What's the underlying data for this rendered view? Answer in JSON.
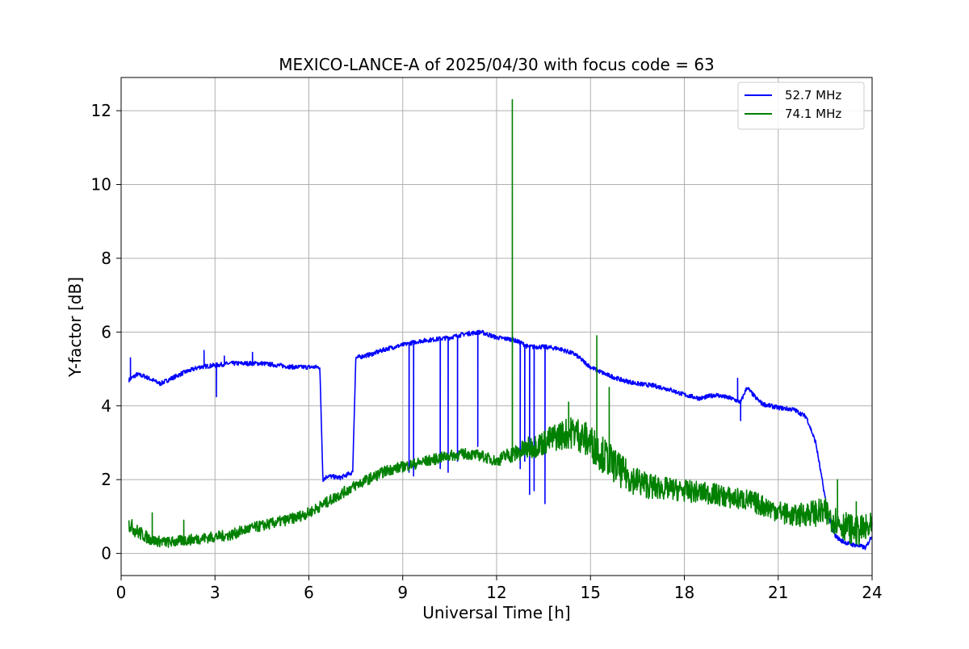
{
  "chart_data": {
    "type": "line",
    "title": "MEXICO-LANCE-A of 2025/04/30 with focus code = 63",
    "xlabel": "Universal Time [h]",
    "ylabel": "Y-factor [dB]",
    "xlim": [
      0,
      24
    ],
    "ylim": [
      -0.6,
      12.9
    ],
    "xticks": [
      0,
      3,
      6,
      9,
      12,
      15,
      18,
      21,
      24
    ],
    "yticks": [
      0,
      2,
      4,
      6,
      8,
      10,
      12
    ],
    "grid": true,
    "legend_position": "top-right",
    "series": [
      {
        "name": "52.7 MHz",
        "color": "#0000ff",
        "x": [
          0.25,
          0.5,
          0.75,
          1.0,
          1.25,
          1.5,
          2.0,
          2.5,
          3.0,
          3.5,
          4.0,
          4.5,
          5.0,
          5.5,
          6.0,
          6.35,
          6.45,
          6.6,
          7.0,
          7.4,
          7.5,
          8.0,
          8.5,
          9.0,
          9.5,
          10.0,
          10.5,
          11.0,
          11.5,
          12.0,
          12.5,
          12.8,
          13.0,
          13.2,
          13.5,
          14.0,
          14.5,
          15.0,
          15.5,
          16.0,
          16.5,
          17.0,
          17.5,
          18.0,
          18.5,
          19.0,
          19.5,
          19.8,
          20.0,
          20.3,
          20.5,
          21.0,
          21.5,
          21.9,
          22.2,
          22.4,
          22.6,
          22.8,
          23.0,
          23.3,
          23.6,
          23.8,
          24.0
        ],
        "y": [
          4.7,
          4.85,
          4.8,
          4.7,
          4.6,
          4.7,
          4.9,
          5.05,
          5.1,
          5.15,
          5.15,
          5.15,
          5.1,
          5.05,
          5.05,
          5.05,
          2.0,
          2.1,
          2.05,
          2.2,
          5.3,
          5.4,
          5.55,
          5.65,
          5.75,
          5.8,
          5.85,
          5.95,
          6.0,
          5.85,
          5.8,
          5.7,
          5.6,
          5.6,
          5.6,
          5.55,
          5.4,
          5.05,
          4.85,
          4.7,
          4.6,
          4.55,
          4.45,
          4.3,
          4.2,
          4.3,
          4.2,
          4.1,
          4.5,
          4.2,
          4.05,
          3.95,
          3.9,
          3.7,
          3.0,
          2.0,
          1.0,
          0.5,
          0.35,
          0.25,
          0.2,
          0.15,
          0.5
        ],
        "dropouts": [
          [
            9.2,
            2.2
          ],
          [
            9.35,
            2.1
          ],
          [
            10.2,
            2.3
          ],
          [
            10.45,
            2.2
          ],
          [
            10.75,
            2.5
          ],
          [
            11.4,
            2.9
          ],
          [
            12.75,
            2.3
          ],
          [
            12.9,
            2.5
          ],
          [
            13.05,
            1.6
          ],
          [
            13.2,
            1.7
          ],
          [
            13.55,
            1.35
          ]
        ],
        "spikes": [
          [
            0.3,
            5.3
          ],
          [
            2.65,
            5.5
          ],
          [
            3.05,
            4.25
          ],
          [
            3.3,
            5.35
          ],
          [
            4.2,
            5.45
          ],
          [
            19.7,
            4.75
          ],
          [
            19.8,
            3.6
          ]
        ]
      },
      {
        "name": "74.1 MHz",
        "color": "#008000",
        "x": [
          0.25,
          0.5,
          1.0,
          1.5,
          2.0,
          2.5,
          3.0,
          3.5,
          4.0,
          4.5,
          5.0,
          5.5,
          6.0,
          6.5,
          7.0,
          7.5,
          8.0,
          8.5,
          9.0,
          9.5,
          10.0,
          10.5,
          11.0,
          11.5,
          12.0,
          12.3,
          12.6,
          13.0,
          13.5,
          14.0,
          14.5,
          15.0,
          15.5,
          16.0,
          16.5,
          17.0,
          17.5,
          18.0,
          18.5,
          19.0,
          19.5,
          20.0,
          20.5,
          21.0,
          21.5,
          22.0,
          22.5,
          23.0,
          23.5,
          24.0
        ],
        "y": [
          0.8,
          0.6,
          0.35,
          0.3,
          0.35,
          0.4,
          0.45,
          0.5,
          0.65,
          0.75,
          0.85,
          0.95,
          1.1,
          1.35,
          1.6,
          1.85,
          2.05,
          2.25,
          2.35,
          2.45,
          2.55,
          2.65,
          2.7,
          2.65,
          2.5,
          2.65,
          2.7,
          2.85,
          3.0,
          3.2,
          3.3,
          3.0,
          2.6,
          2.2,
          1.95,
          1.8,
          1.75,
          1.7,
          1.65,
          1.6,
          1.5,
          1.45,
          1.3,
          1.15,
          1.0,
          1.1,
          1.1,
          0.8,
          0.6,
          0.7
        ],
        "spikes": [
          [
            12.5,
            12.3
          ],
          [
            14.3,
            4.1
          ],
          [
            15.2,
            5.9
          ],
          [
            15.6,
            4.5
          ],
          [
            1.0,
            1.1
          ],
          [
            2.0,
            0.9
          ],
          [
            22.9,
            2.0
          ],
          [
            23.5,
            1.4
          ]
        ],
        "noise_band": [
          0.4,
          0.4,
          0.3,
          0.3,
          0.3,
          0.3,
          0.3,
          0.3,
          0.3,
          0.3,
          0.3,
          0.3,
          0.3,
          0.3,
          0.3,
          0.3,
          0.3,
          0.3,
          0.3,
          0.3,
          0.3,
          0.3,
          0.3,
          0.3,
          0.3,
          0.4,
          0.5,
          0.6,
          0.7,
          0.8,
          0.9,
          1.0,
          1.0,
          0.9,
          0.8,
          0.7,
          0.6,
          0.6,
          0.6,
          0.6,
          0.6,
          0.6,
          0.6,
          0.6,
          0.6,
          0.7,
          0.8,
          0.8,
          0.8,
          0.8
        ]
      }
    ]
  }
}
